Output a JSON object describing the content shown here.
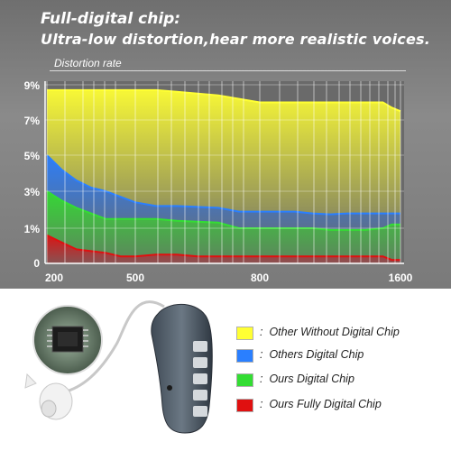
{
  "header": {
    "line1": "Full-digital chip:",
    "line2": "Ultra-low distortion,hear more realistic voices.",
    "metric_label": "Distortion rate"
  },
  "colors": {
    "other_without": "#ffff33",
    "others_digital": "#2a7fff",
    "ours_digital": "#33dd33",
    "ours_fully": "#e01010"
  },
  "chart_data": {
    "type": "area",
    "title": "",
    "xlabel": "",
    "ylabel": "Distortion rate",
    "x_ticks": [
      "200",
      "500",
      "800",
      "1600"
    ],
    "y_ticks": [
      "0",
      "1%",
      "3%",
      "5%",
      "7%",
      "9%"
    ],
    "legend_position": "right-below-chart",
    "x": [
      200,
      250,
      300,
      350,
      400,
      450,
      500,
      550,
      600,
      650,
      700,
      750,
      800,
      850,
      900,
      950,
      1000,
      1100,
      1200,
      1300,
      1400,
      1500,
      1550,
      1600
    ],
    "series": [
      {
        "name": "Other Without Digital Chip",
        "color": "#ffff33",
        "values": [
          8.7,
          8.7,
          8.7,
          8.7,
          8.7,
          8.7,
          8.7,
          8.7,
          8.6,
          8.5,
          8.4,
          8.2,
          8.0,
          8.0,
          8.0,
          8.0,
          8.0,
          8.0,
          8.0,
          8.0,
          8.0,
          8.0,
          7.7,
          7.5
        ]
      },
      {
        "name": "Others Digital Chip",
        "color": "#2a7fff",
        "values": [
          5.0,
          4.2,
          3.6,
          3.2,
          3.0,
          2.7,
          2.4,
          2.2,
          2.2,
          2.15,
          2.1,
          1.9,
          1.9,
          1.9,
          1.9,
          1.9,
          1.9,
          1.8,
          1.75,
          1.8,
          1.8,
          1.8,
          1.8,
          1.8
        ]
      },
      {
        "name": "Ours Digital Chip",
        "color": "#33dd33",
        "values": [
          3.0,
          2.5,
          2.1,
          1.8,
          1.5,
          1.5,
          1.5,
          1.5,
          1.4,
          1.35,
          1.3,
          1.0,
          1.0,
          1.0,
          1.0,
          1.0,
          1.0,
          1.0,
          0.95,
          0.95,
          0.95,
          1.0,
          1.2,
          1.2
        ]
      },
      {
        "name": "Ours Fully Digital Chip",
        "color": "#e01010",
        "values": [
          0.8,
          0.6,
          0.4,
          0.35,
          0.3,
          0.2,
          0.2,
          0.25,
          0.25,
          0.2,
          0.2,
          0.2,
          0.2,
          0.2,
          0.2,
          0.2,
          0.2,
          0.2,
          0.2,
          0.2,
          0.2,
          0.2,
          0.1,
          0.1
        ]
      }
    ]
  },
  "legend": {
    "separator": ":",
    "items": [
      {
        "label": "Other Without Digital Chip"
      },
      {
        "label": "Others Digital Chip"
      },
      {
        "label": "Ours Digital Chip"
      },
      {
        "label": "Ours Fully Digital Chip"
      }
    ]
  }
}
